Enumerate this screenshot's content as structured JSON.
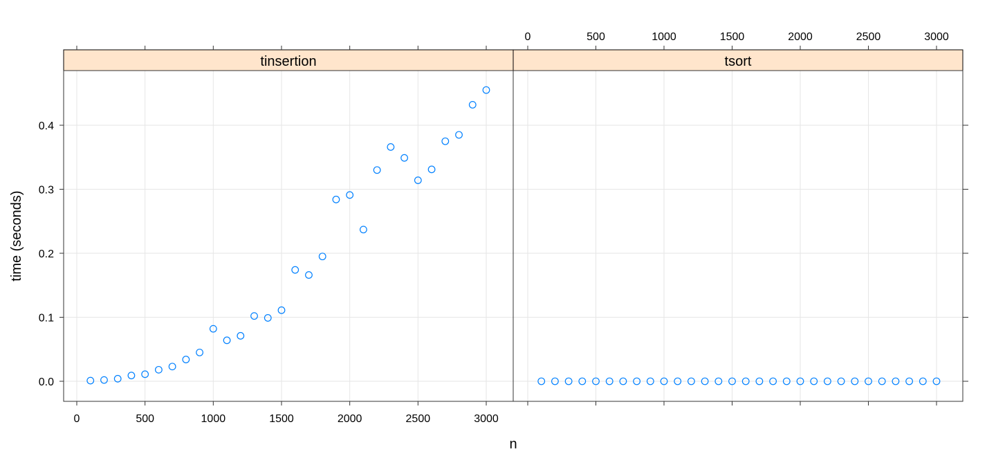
{
  "chart_data": {
    "type": "scatter",
    "title": "",
    "xlabel": "n",
    "ylabel": "time (seconds)",
    "xlim": [
      -100,
      3200
    ],
    "ylim": [
      -0.032,
      0.485
    ],
    "x_ticks": [
      0,
      500,
      1000,
      1500,
      2000,
      2500,
      3000
    ],
    "y_ticks": [
      0.0,
      0.1,
      0.2,
      0.3,
      0.4
    ],
    "y_tick_labels": [
      "0.0",
      "0.1",
      "0.2",
      "0.3",
      "0.4"
    ],
    "grid": true,
    "point_color": "#0080ff",
    "strip_color": "#ffe5cc",
    "panels": [
      {
        "name": "tinsertion",
        "x": [
          100,
          200,
          300,
          400,
          500,
          600,
          700,
          800,
          900,
          1000,
          1100,
          1200,
          1300,
          1400,
          1500,
          1600,
          1700,
          1800,
          1900,
          2000,
          2100,
          2200,
          2300,
          2400,
          2500,
          2600,
          2700,
          2800,
          2900,
          3000
        ],
        "y": [
          0.001,
          0.002,
          0.004,
          0.009,
          0.011,
          0.018,
          0.023,
          0.034,
          0.045,
          0.082,
          0.064,
          0.071,
          0.102,
          0.099,
          0.111,
          0.174,
          0.166,
          0.195,
          0.284,
          0.291,
          0.237,
          0.33,
          0.366,
          0.349,
          0.314,
          0.331,
          0.375,
          0.385,
          0.432,
          0.455
        ]
      },
      {
        "name": "tsort",
        "x": [
          100,
          200,
          300,
          400,
          500,
          600,
          700,
          800,
          900,
          1000,
          1100,
          1200,
          1300,
          1400,
          1500,
          1600,
          1700,
          1800,
          1900,
          2000,
          2100,
          2200,
          2300,
          2400,
          2500,
          2600,
          2700,
          2800,
          2900,
          3000
        ],
        "y": [
          0,
          0,
          0,
          0,
          0,
          0,
          0,
          0,
          0,
          0,
          0,
          0,
          0,
          0,
          0,
          0,
          0,
          0,
          0,
          0,
          0,
          0,
          0,
          0,
          0,
          0,
          0,
          0,
          0,
          0
        ]
      }
    ]
  }
}
